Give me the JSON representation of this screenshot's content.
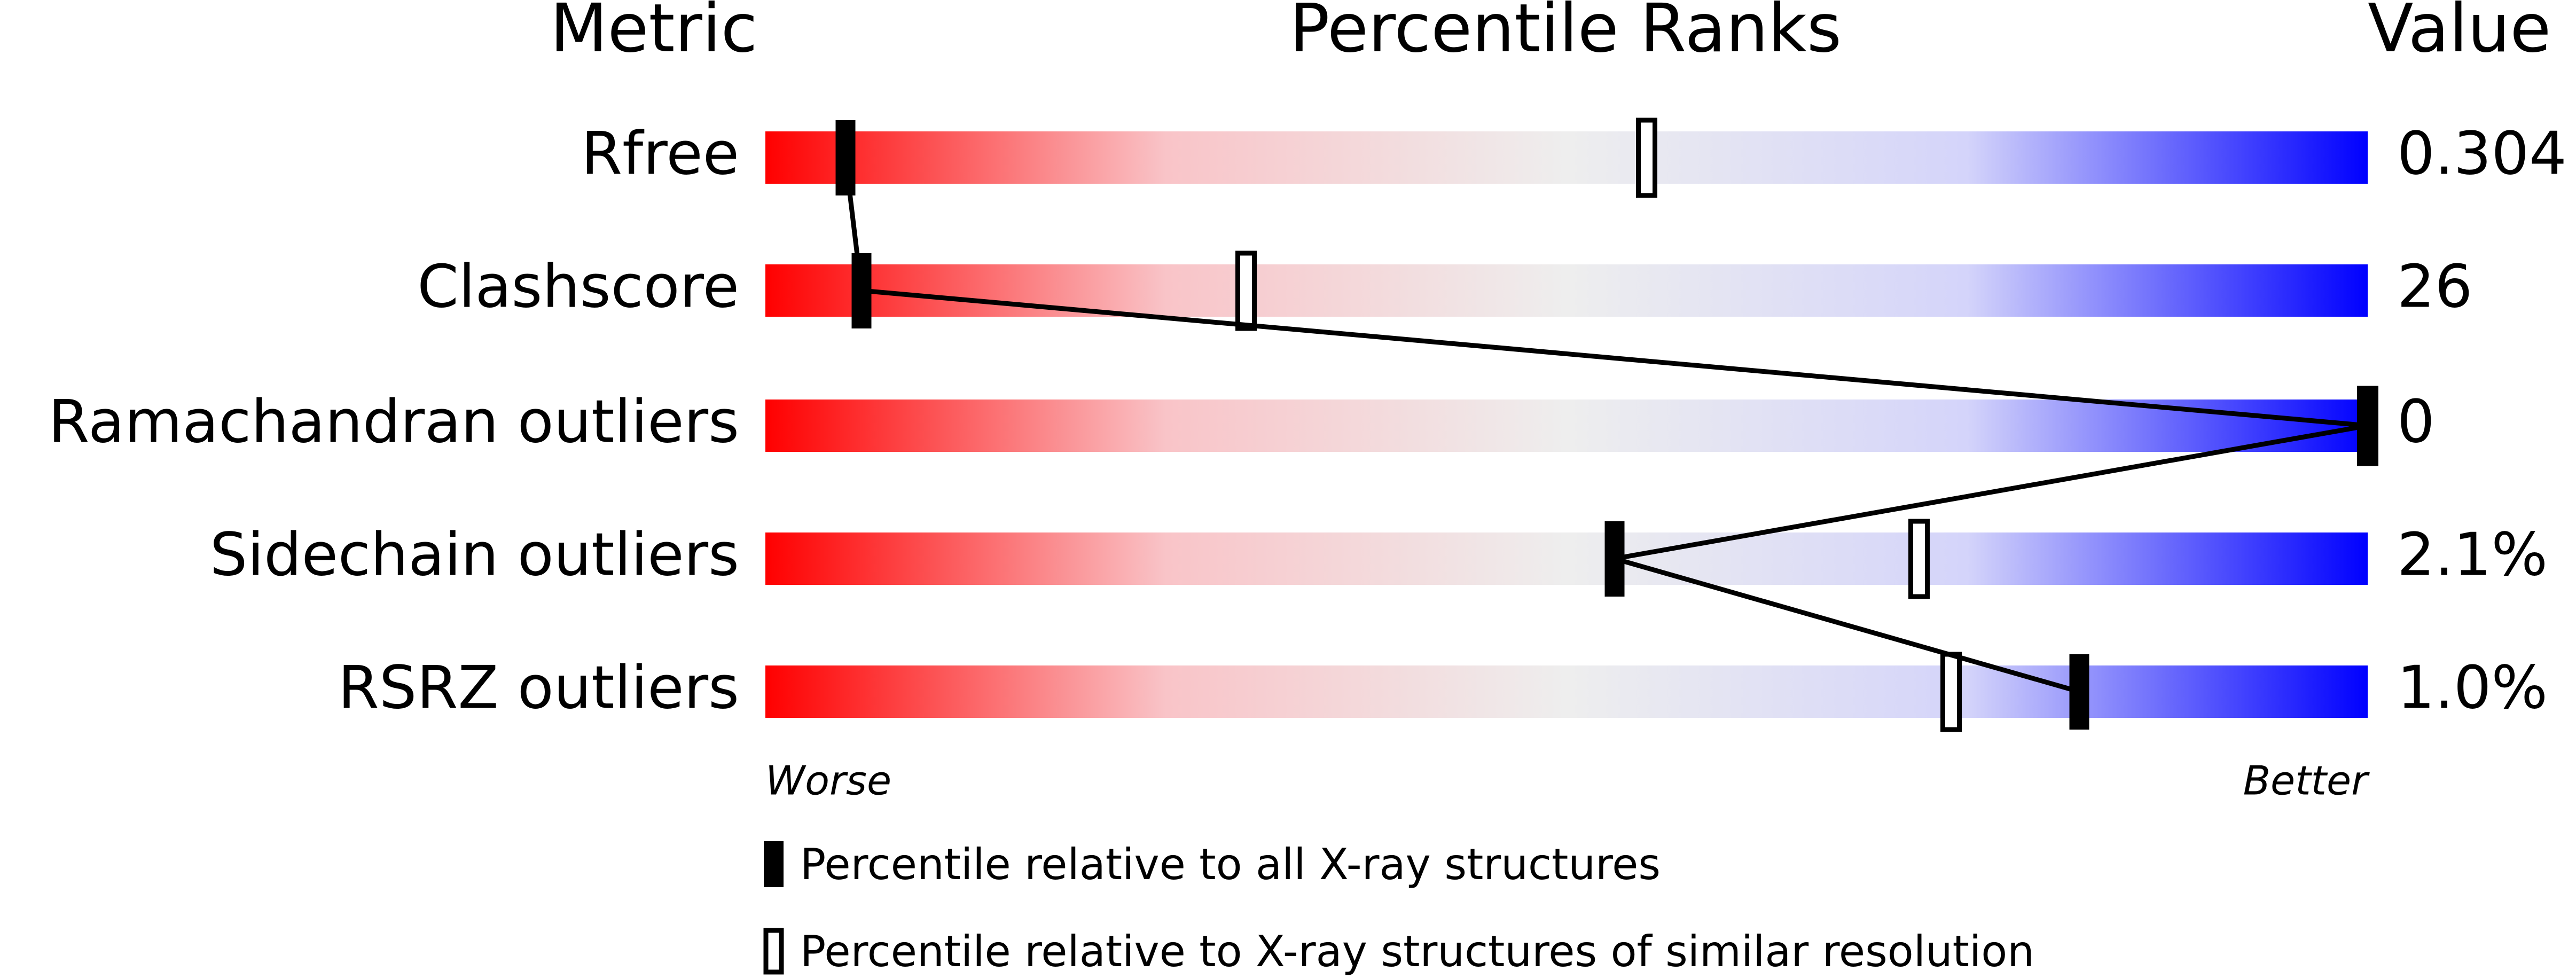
{
  "chart_data": {
    "type": "percentile",
    "title": "Percentile Ranks",
    "metric_header": "Metric",
    "value_header": "Value",
    "categories": [
      "Rfree",
      "Clashscore",
      "Ramachandran outliers",
      "Sidechain outliers",
      "RSRZ outliers"
    ],
    "metric_values": [
      "0.304",
      "26",
      "0",
      "2.1%",
      "1.0%"
    ],
    "series": [
      {
        "name": "Percentile relative to all X-ray structures",
        "color": "#000000",
        "style": "filled",
        "values": [
          5,
          6,
          100,
          53,
          82
        ]
      },
      {
        "name": "Percentile relative to X-ray structures of similar resolution",
        "color": "#000000",
        "style": "hollow",
        "values": [
          55,
          30,
          100,
          72,
          74
        ]
      }
    ],
    "xlim": [
      0,
      100
    ],
    "worse_label": "Worse",
    "better_label": "Better",
    "gradient": [
      "#ff0000",
      "#f9c4c8",
      "#eeeeee",
      "#d4d4fa",
      "#0000ff"
    ]
  }
}
